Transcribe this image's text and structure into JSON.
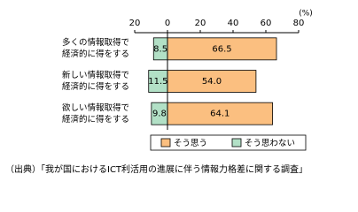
{
  "chart_data": {
    "type": "diverging-bar",
    "unit": "(%)",
    "categories": [
      "多くの情報取得で\n経済的に得をする",
      "新しい情報取得で\n経済的に得をする",
      "欲しい情報取得で\n経済的に得をする"
    ],
    "series": [
      {
        "name": "そう思う",
        "color": "#fbbf80",
        "values": [
          66.5,
          54.0,
          64.1
        ],
        "value_labels": [
          "66.5",
          "54.0",
          "64.1"
        ]
      },
      {
        "name": "そう思わない",
        "color": "#b2e0c6",
        "values": [
          -8.5,
          -11.5,
          -9.8
        ],
        "value_labels": [
          "8.5",
          "11.5",
          "9.8"
        ]
      }
    ],
    "xlim": [
      -20,
      80
    ],
    "xticks": [
      {
        "value": -20,
        "label": "20"
      },
      0,
      20,
      40,
      60,
      80
    ],
    "source": "（出典）「我が国におけるICT利活用の進展に伴う情報力格差に関する調査」"
  }
}
